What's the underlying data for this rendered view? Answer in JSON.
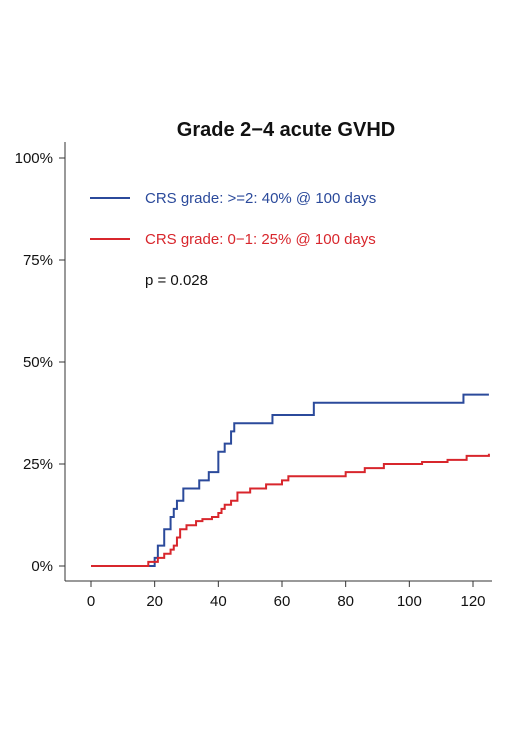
{
  "chart_data": {
    "type": "line",
    "title": "Grade 2−4 acute GVHD",
    "xlabel": "",
    "ylabel": "",
    "xlim": [
      -8,
      126
    ],
    "ylim": [
      -4,
      104
    ],
    "x_ticks": [
      0,
      20,
      40,
      60,
      80,
      100,
      120
    ],
    "x_tick_labels": [
      "0",
      "20",
      "40",
      "60",
      "80",
      "100",
      "120"
    ],
    "y_ticks": [
      0,
      25,
      50,
      75,
      100
    ],
    "y_tick_labels": [
      "0%",
      "25%",
      "50%",
      "75%",
      "100%"
    ],
    "step": true,
    "grid": false,
    "legend_position": "top-left",
    "series": [
      {
        "name": "CRS grade: >=2: 40% @ 100 days",
        "color": "#2b4a9b",
        "points": [
          [
            0,
            0
          ],
          [
            16,
            0
          ],
          [
            20,
            2
          ],
          [
            21,
            5
          ],
          [
            23,
            9
          ],
          [
            25,
            12
          ],
          [
            26,
            14
          ],
          [
            27,
            16
          ],
          [
            29,
            19
          ],
          [
            34,
            21
          ],
          [
            37,
            23
          ],
          [
            40,
            28
          ],
          [
            42,
            30
          ],
          [
            44,
            33
          ],
          [
            45,
            35
          ],
          [
            57,
            37
          ],
          [
            70,
            40
          ],
          [
            117,
            42
          ],
          [
            125,
            42
          ]
        ]
      },
      {
        "name": "CRS grade: 0−1: 25% @ 100 days",
        "color": "#d8262c",
        "points": [
          [
            0,
            0
          ],
          [
            18,
            1
          ],
          [
            21,
            2
          ],
          [
            23,
            3
          ],
          [
            25,
            4
          ],
          [
            26,
            5
          ],
          [
            27,
            7
          ],
          [
            28,
            9
          ],
          [
            30,
            10
          ],
          [
            33,
            11
          ],
          [
            35,
            11.5
          ],
          [
            38,
            12
          ],
          [
            40,
            13
          ],
          [
            41,
            14
          ],
          [
            42,
            15
          ],
          [
            44,
            16
          ],
          [
            46,
            18
          ],
          [
            50,
            19
          ],
          [
            55,
            20
          ],
          [
            60,
            21
          ],
          [
            62,
            22
          ],
          [
            80,
            23
          ],
          [
            86,
            24
          ],
          [
            92,
            25
          ],
          [
            104,
            25.5
          ],
          [
            112,
            26
          ],
          [
            118,
            27
          ],
          [
            125,
            27.5
          ]
        ]
      }
    ],
    "annotations": [
      "p = 0.028"
    ]
  }
}
